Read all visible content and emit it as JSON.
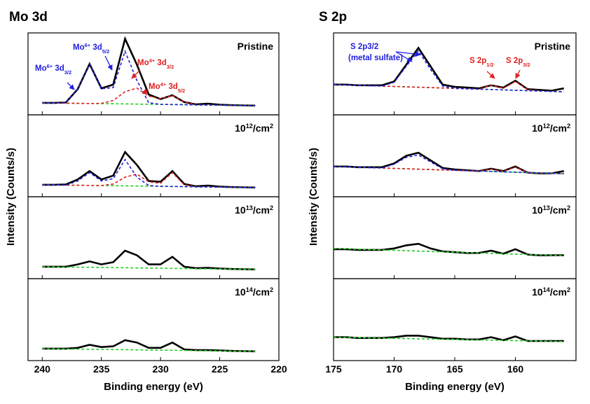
{
  "chart_data": [
    {
      "type": "line",
      "title": "Mo 3d",
      "xlabel": "Binding energy (eV)",
      "ylabel": "Intensity (Counts/s)",
      "x": [
        240,
        239,
        238,
        237,
        236,
        235,
        234,
        233,
        232,
        231,
        230,
        229,
        228,
        227,
        226,
        225,
        224,
        223,
        222
      ],
      "xlim": [
        241.2,
        220
      ],
      "xticks": [
        240,
        235,
        230,
        225,
        220
      ],
      "panels": [
        {
          "label": [
            {
              "text": "Pristine"
            }
          ],
          "ylim": [
            0,
            100
          ],
          "series": [
            {
              "color": "#000000",
              "values": [
                12,
                12,
                12.5,
                30,
                63,
                31,
                36,
                96,
                62,
                23,
                17,
                22,
                13,
                10,
                11,
                9.5,
                9,
                8.7,
                8.4
              ]
            },
            {
              "color": "#22cc22",
              "dash": true,
              "values": [
                12,
                11.8,
                11.6,
                11.4,
                11.2,
                11,
                10.8,
                10.6,
                10.4,
                10.2,
                10,
                9.8,
                9.6,
                9.4,
                9.2,
                9,
                8.8,
                8.6,
                8.4
              ]
            },
            {
              "color": "#e02020",
              "dash": true,
              "values": [
                12,
                11.8,
                11.6,
                11.4,
                11.2,
                11.4,
                15.1,
                26.6,
                31.4,
                20.9,
                17.3,
                21.8,
                13.1,
                9.4,
                9.2,
                9,
                8.8,
                8.6,
                8.4
              ]
            },
            {
              "color": "#2020e0",
              "dash": true,
              "values": [
                12,
                11.8,
                12.5,
                30.4,
                63.2,
                30.5,
                32,
                79.6,
                41.4,
                12.2,
                10,
                9.8,
                9.6,
                9.4,
                9.2,
                9,
                8.8,
                8.6,
                8.4
              ]
            }
          ]
        },
        {
          "label": [
            {
              "text": "10"
            },
            {
              "text": "12",
              "shift": "super"
            },
            {
              "text": "/cm"
            },
            {
              "text": "2",
              "shift": "super"
            }
          ],
          "ylim": [
            0,
            100
          ],
          "series": [
            {
              "color": "#000000",
              "values": [
                12,
                12,
                12.5,
                19,
                30,
                19,
                24,
                55,
                38,
                17,
                16,
                30,
                13,
                10,
                11,
                9.5,
                9,
                8.7,
                8.4
              ]
            },
            {
              "color": "#22cc22",
              "dash": true,
              "values": [
                12,
                11.8,
                11.6,
                11.4,
                11.2,
                11,
                10.8,
                10.6,
                10.4,
                10.2,
                10,
                9.8,
                9.6,
                9.4,
                9.2,
                9,
                8.8,
                8.6,
                8.4
              ]
            },
            {
              "color": "#e02020",
              "dash": true,
              "values": [
                12,
                11.8,
                11.6,
                11.4,
                11.2,
                11,
                13,
                22,
                26,
                16,
                14,
                28,
                12,
                9.4,
                9.2,
                9,
                8.8,
                8.6,
                8.4
              ]
            },
            {
              "color": "#2020e0",
              "dash": true,
              "values": [
                12,
                11.8,
                11.6,
                17,
                28,
                17,
                20,
                45,
                22,
                11,
                10,
                9.8,
                9.6,
                9.4,
                9.2,
                9,
                8.8,
                8.6,
                8.4
              ]
            }
          ]
        },
        {
          "label": [
            {
              "text": "10"
            },
            {
              "text": "13",
              "shift": "super"
            },
            {
              "text": "/cm"
            },
            {
              "text": "2",
              "shift": "super"
            }
          ],
          "ylim": [
            0,
            100
          ],
          "series": [
            {
              "color": "#000000",
              "values": [
                12,
                12,
                12,
                15,
                19,
                15,
                18,
                33,
                27,
                15,
                15,
                25,
                12,
                10,
                10.5,
                9.5,
                9,
                8.7,
                8.4
              ]
            },
            {
              "color": "#22cc22",
              "dash": true,
              "values": [
                12,
                11.8,
                11.6,
                11.4,
                11.2,
                11,
                10.8,
                10.6,
                10.4,
                10.2,
                10,
                9.8,
                9.6,
                9.4,
                9.2,
                9,
                8.8,
                8.6,
                8.4
              ]
            }
          ]
        },
        {
          "label": [
            {
              "text": "10"
            },
            {
              "text": "14",
              "shift": "super"
            },
            {
              "text": "/cm"
            },
            {
              "text": "2",
              "shift": "super"
            }
          ],
          "ylim": [
            0,
            100
          ],
          "series": [
            {
              "color": "#000000",
              "values": [
                12,
                12,
                12,
                13,
                17,
                14,
                15,
                23,
                20,
                13,
                13,
                20,
                11,
                10,
                10,
                9.5,
                9,
                8.7,
                8.4
              ]
            },
            {
              "color": "#22cc22",
              "dash": true,
              "values": [
                12,
                11.8,
                11.6,
                11.4,
                11.2,
                11,
                10.8,
                10.6,
                10.4,
                10.2,
                10,
                9.8,
                9.6,
                9.4,
                9.2,
                9,
                8.8,
                8.6,
                8.4
              ]
            }
          ]
        }
      ],
      "annotations": [
        {
          "color": "#2020e0",
          "segments": [
            {
              "text": "Mo"
            },
            {
              "text": "6+",
              "shift": "super"
            },
            {
              "text": " 3d"
            },
            {
              "text": "3/2",
              "shift": "sub"
            }
          ]
        },
        {
          "color": "#2020e0",
          "segments": [
            {
              "text": "Mo"
            },
            {
              "text": "6+",
              "shift": "super"
            },
            {
              "text": " 3d"
            },
            {
              "text": "5/2",
              "shift": "sub"
            }
          ]
        },
        {
          "color": "#e02020",
          "segments": [
            {
              "text": "Mo"
            },
            {
              "text": "4+",
              "shift": "super"
            },
            {
              "text": " 3d"
            },
            {
              "text": "3/2",
              "shift": "sub"
            }
          ]
        },
        {
          "color": "#e02020",
          "segments": [
            {
              "text": "Mo"
            },
            {
              "text": "4+",
              "shift": "super"
            },
            {
              "text": " 3d"
            },
            {
              "text": "5/2",
              "shift": "sub"
            }
          ]
        }
      ]
    },
    {
      "type": "line",
      "title": "S 2p",
      "xlabel": "Binding energy (eV)",
      "ylabel": "Intensity (Counts/s)",
      "x": [
        175,
        174,
        173,
        172,
        171,
        170,
        169,
        168,
        167,
        166,
        165,
        164,
        163,
        162,
        161,
        160,
        159,
        158,
        157,
        156
      ],
      "xlim": [
        175,
        155
      ],
      "xticks": [
        175,
        170,
        165,
        160
      ],
      "panels": [
        {
          "label": [
            {
              "text": "Pristine"
            }
          ],
          "ylim": [
            0,
            100
          ],
          "series": [
            {
              "color": "#000000",
              "values": [
                36,
                36,
                35,
                35,
                35,
                40,
                62,
                84,
                60,
                36,
                33,
                32,
                31,
                35,
                32,
                41,
                30,
                29,
                28,
                31
              ]
            },
            {
              "color": "#22cc22",
              "dash": true,
              "values": [
                36,
                35.5,
                35,
                34.5,
                34,
                33.5,
                33,
                32.5,
                32,
                31.5,
                31,
                30.5,
                30,
                29.5,
                29,
                28.5,
                28,
                27.5,
                27,
                26.5
              ]
            },
            {
              "color": "#e02020",
              "dash": true,
              "values": [
                36,
                35.5,
                35,
                34.5,
                34,
                33.5,
                33,
                32.5,
                32,
                31.5,
                31,
                30.5,
                30,
                35,
                31,
                40,
                29.5,
                27.5,
                27,
                26.5
              ]
            },
            {
              "color": "#2020e0",
              "dash": true,
              "values": [
                36,
                35.5,
                35,
                34.5,
                34,
                39,
                60,
                80,
                56,
                34,
                31,
                30.5,
                30,
                29.5,
                29,
                28.5,
                28,
                27.5,
                27,
                26.5
              ]
            }
          ]
        },
        {
          "label": [
            {
              "text": "10"
            },
            {
              "text": "12",
              "shift": "super"
            },
            {
              "text": "/cm"
            },
            {
              "text": "2",
              "shift": "super"
            }
          ],
          "ylim": [
            0,
            100
          ],
          "series": [
            {
              "color": "#000000",
              "values": [
                36,
                36,
                35,
                35,
                35,
                40,
                50,
                54,
                44,
                34,
                32,
                31,
                30,
                33,
                30,
                36,
                28,
                27,
                27,
                30
              ]
            },
            {
              "color": "#22cc22",
              "dash": true,
              "values": [
                36,
                35.5,
                35,
                34.5,
                34,
                33.5,
                33,
                32.5,
                32,
                31.5,
                31,
                30.5,
                30,
                29.5,
                29,
                28.5,
                28,
                27.5,
                27,
                26.5
              ]
            },
            {
              "color": "#e02020",
              "dash": true,
              "values": [
                36,
                35.5,
                35,
                34.5,
                34,
                33.5,
                33,
                32.5,
                32,
                31.5,
                31,
                30.5,
                30,
                32.5,
                29.5,
                35,
                28,
                27.5,
                27,
                26.5
              ]
            },
            {
              "color": "#2020e0",
              "dash": true,
              "values": [
                36,
                35.5,
                35,
                34.5,
                34,
                39,
                48,
                51,
                42,
                33,
                31,
                30.5,
                30,
                29.5,
                29,
                28.5,
                28,
                27.5,
                27,
                26.5
              ]
            }
          ]
        },
        {
          "label": [
            {
              "text": "10"
            },
            {
              "text": "13",
              "shift": "super"
            },
            {
              "text": "/cm"
            },
            {
              "text": "2",
              "shift": "super"
            }
          ],
          "ylim": [
            0,
            100
          ],
          "series": [
            {
              "color": "#000000",
              "values": [
                35,
                35,
                34,
                34,
                34,
                36,
                40,
                42,
                36,
                32,
                31,
                30,
                30,
                33,
                29,
                35,
                28,
                27,
                27,
                27
              ]
            },
            {
              "color": "#22cc22",
              "dash": true,
              "values": [
                36,
                35.5,
                35,
                34.5,
                34,
                33.5,
                33,
                32.5,
                32,
                31.5,
                31,
                30.5,
                30,
                29.5,
                29,
                28.5,
                28,
                27.5,
                27,
                26.5
              ]
            }
          ]
        },
        {
          "label": [
            {
              "text": "10"
            },
            {
              "text": "14",
              "shift": "super"
            },
            {
              "text": "/cm"
            },
            {
              "text": "2",
              "shift": "super"
            }
          ],
          "ylim": [
            0,
            100
          ],
          "series": [
            {
              "color": "#000000",
              "values": [
                27,
                27,
                26,
                26,
                26,
                27,
                29,
                29,
                27,
                25,
                25,
                24,
                24,
                27,
                23,
                28,
                22,
                22,
                22,
                22
              ]
            },
            {
              "color": "#22cc22",
              "dash": true,
              "values": [
                27,
                26.7,
                26.4,
                26.1,
                25.8,
                25.5,
                25.2,
                24.9,
                24.6,
                24.3,
                24,
                23.7,
                23.4,
                23.1,
                22.8,
                22.5,
                22.2,
                21.9,
                21.6,
                21.3
              ]
            }
          ]
        }
      ],
      "annotations": [
        {
          "color": "#2020e0",
          "segments": [
            {
              "text": "S 2p3/2"
            }
          ]
        },
        {
          "color": "#2020e0",
          "segments": [
            {
              "text": "(metal sulfate)"
            }
          ]
        },
        {
          "color": "#e02020",
          "segments": [
            {
              "text": "S 2p"
            },
            {
              "text": "1/2",
              "shift": "sub"
            }
          ]
        },
        {
          "color": "#e02020",
          "segments": [
            {
              "text": "S 2p"
            },
            {
              "text": "3/2",
              "shift": "sub"
            }
          ]
        }
      ]
    }
  ]
}
